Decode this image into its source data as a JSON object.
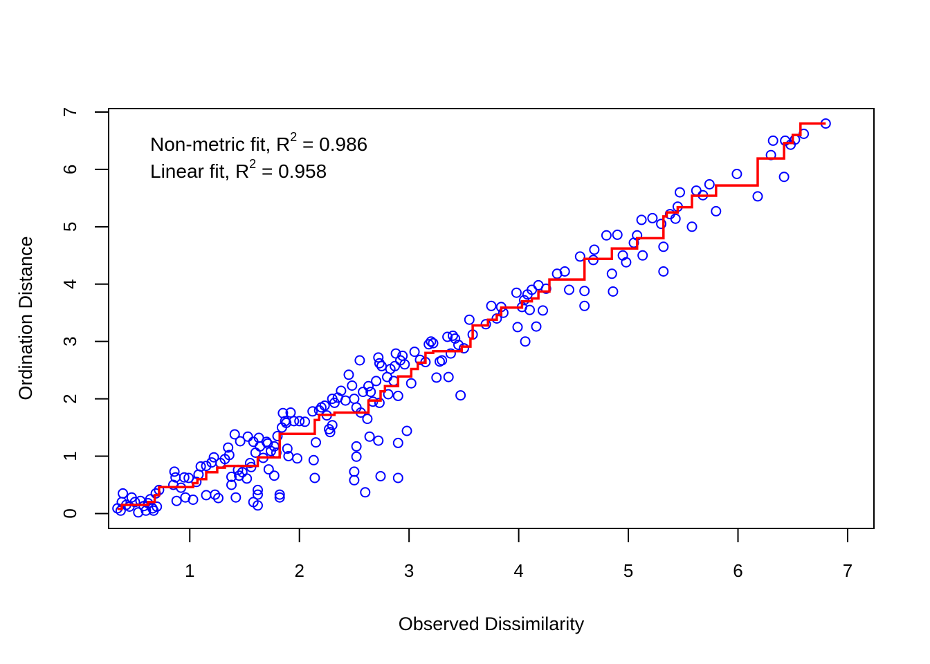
{
  "chart_data": {
    "type": "scatter",
    "title": "",
    "xlabel": "Observed Dissimilarity",
    "ylabel": "Ordination Distance",
    "xlim": [
      0.26,
      7.24
    ],
    "ylim": [
      -0.26,
      7.06
    ],
    "x_ticks": [
      "1",
      "2",
      "3",
      "4",
      "5",
      "6",
      "7"
    ],
    "y_ticks": [
      "0",
      "1",
      "2",
      "3",
      "4",
      "5",
      "6",
      "7"
    ],
    "grid": false,
    "annotations": [
      {
        "prefix": "Non-metric fit, R",
        "sup": "2",
        "suffix": " = 0.986"
      },
      {
        "prefix": "Linear fit, R",
        "sup": "2",
        "suffix": " = 0.958"
      }
    ],
    "colors": {
      "points": "#0000ff",
      "fit": "#ff0000",
      "axis": "#000000"
    },
    "series": [
      {
        "name": "points",
        "marker": "open-circle",
        "points": [
          [
            0.34,
            0.09
          ],
          [
            0.37,
            0.05
          ],
          [
            0.38,
            0.2
          ],
          [
            0.39,
            0.35
          ],
          [
            0.42,
            0.15
          ],
          [
            0.45,
            0.12
          ],
          [
            0.47,
            0.28
          ],
          [
            0.5,
            0.2
          ],
          [
            0.53,
            0.02
          ],
          [
            0.55,
            0.22
          ],
          [
            0.58,
            0.13
          ],
          [
            0.6,
            0.05
          ],
          [
            0.62,
            0.18
          ],
          [
            0.64,
            0.25
          ],
          [
            0.66,
            0.09
          ],
          [
            0.67,
            0.05
          ],
          [
            0.69,
            0.35
          ],
          [
            0.7,
            0.12
          ],
          [
            0.72,
            0.41
          ],
          [
            0.85,
            0.5
          ],
          [
            0.86,
            0.73
          ],
          [
            0.87,
            0.63
          ],
          [
            0.88,
            0.22
          ],
          [
            0.92,
            0.45
          ],
          [
            0.95,
            0.63
          ],
          [
            0.96,
            0.28
          ],
          [
            0.99,
            0.62
          ],
          [
            1.03,
            0.24
          ],
          [
            1.06,
            0.55
          ],
          [
            1.08,
            0.68
          ],
          [
            1.1,
            0.82
          ],
          [
            1.15,
            0.83
          ],
          [
            1.15,
            0.32
          ],
          [
            1.2,
            0.89
          ],
          [
            1.22,
            0.98
          ],
          [
            1.23,
            0.33
          ],
          [
            1.26,
            0.27
          ],
          [
            1.28,
            0.88
          ],
          [
            1.32,
            0.95
          ],
          [
            1.35,
            1.15
          ],
          [
            1.36,
            1.02
          ],
          [
            1.38,
            0.64
          ],
          [
            1.38,
            0.5
          ],
          [
            1.41,
            1.38
          ],
          [
            1.42,
            0.28
          ],
          [
            1.44,
            0.76
          ],
          [
            1.45,
            0.66
          ],
          [
            1.46,
            1.26
          ],
          [
            1.48,
            0.72
          ],
          [
            1.52,
            0.61
          ],
          [
            1.53,
            1.34
          ],
          [
            1.55,
            0.88
          ],
          [
            1.56,
            0.81
          ],
          [
            1.58,
            1.25
          ],
          [
            1.58,
            0.2
          ],
          [
            1.6,
            1.06
          ],
          [
            1.62,
            0.14
          ],
          [
            1.62,
            0.41
          ],
          [
            1.62,
            0.33
          ],
          [
            1.63,
            1.32
          ],
          [
            1.64,
            1.17
          ],
          [
            1.67,
            0.97
          ],
          [
            1.7,
            1.25
          ],
          [
            1.71,
            1.22
          ],
          [
            1.72,
            0.77
          ],
          [
            1.74,
            1.09
          ],
          [
            1.77,
            0.66
          ],
          [
            1.77,
            1.17
          ],
          [
            1.79,
            1.06
          ],
          [
            1.8,
            1.35
          ],
          [
            1.82,
            0.33
          ],
          [
            1.82,
            0.28
          ],
          [
            1.84,
            1.5
          ],
          [
            1.85,
            1.75
          ],
          [
            1.87,
            1.61
          ],
          [
            1.88,
            1.58
          ],
          [
            1.89,
            1.13
          ],
          [
            1.9,
            1.0
          ],
          [
            1.92,
            1.76
          ],
          [
            1.95,
            1.61
          ],
          [
            1.98,
            0.96
          ],
          [
            2.0,
            1.61
          ],
          [
            2.05,
            1.6
          ],
          [
            2.12,
            1.78
          ],
          [
            2.13,
            0.93
          ],
          [
            2.14,
            0.62
          ],
          [
            2.15,
            1.24
          ],
          [
            2.18,
            1.8
          ],
          [
            2.2,
            1.85
          ],
          [
            2.23,
            1.88
          ],
          [
            2.25,
            1.71
          ],
          [
            2.27,
            1.47
          ],
          [
            2.28,
            1.42
          ],
          [
            2.3,
            2.0
          ],
          [
            2.3,
            1.54
          ],
          [
            2.32,
            1.93
          ],
          [
            2.35,
            2.02
          ],
          [
            2.38,
            2.14
          ],
          [
            2.42,
            1.97
          ],
          [
            2.45,
            2.42
          ],
          [
            2.48,
            2.23
          ],
          [
            2.5,
            2.0
          ],
          [
            2.5,
            0.73
          ],
          [
            2.5,
            0.58
          ],
          [
            2.52,
            1.85
          ],
          [
            2.52,
            1.17
          ],
          [
            2.52,
            0.99
          ],
          [
            2.55,
            2.67
          ],
          [
            2.56,
            1.76
          ],
          [
            2.58,
            2.12
          ],
          [
            2.6,
            0.37
          ],
          [
            2.62,
            1.65
          ],
          [
            2.63,
            2.22
          ],
          [
            2.64,
            1.34
          ],
          [
            2.65,
            2.12
          ],
          [
            2.67,
            1.95
          ],
          [
            2.7,
            2.31
          ],
          [
            2.72,
            2.72
          ],
          [
            2.72,
            1.27
          ],
          [
            2.73,
            1.93
          ],
          [
            2.73,
            2.62
          ],
          [
            2.74,
            0.65
          ],
          [
            2.75,
            2.57
          ],
          [
            2.8,
            2.38
          ],
          [
            2.81,
            2.08
          ],
          [
            2.83,
            2.52
          ],
          [
            2.86,
            2.31
          ],
          [
            2.87,
            2.57
          ],
          [
            2.88,
            2.79
          ],
          [
            2.9,
            1.23
          ],
          [
            2.9,
            2.05
          ],
          [
            2.9,
            0.62
          ],
          [
            2.92,
            2.67
          ],
          [
            2.94,
            2.75
          ],
          [
            2.96,
            2.6
          ],
          [
            2.98,
            1.44
          ],
          [
            3.02,
            2.27
          ],
          [
            3.05,
            2.82
          ],
          [
            3.1,
            2.68
          ],
          [
            3.15,
            2.64
          ],
          [
            3.18,
            2.95
          ],
          [
            3.2,
            3.0
          ],
          [
            3.22,
            2.97
          ],
          [
            3.25,
            2.37
          ],
          [
            3.28,
            2.65
          ],
          [
            3.3,
            2.67
          ],
          [
            3.35,
            3.08
          ],
          [
            3.36,
            2.38
          ],
          [
            3.38,
            2.79
          ],
          [
            3.4,
            3.1
          ],
          [
            3.42,
            3.05
          ],
          [
            3.45,
            2.94
          ],
          [
            3.47,
            2.06
          ],
          [
            3.5,
            2.88
          ],
          [
            3.55,
            3.38
          ],
          [
            3.58,
            3.12
          ],
          [
            3.7,
            3.3
          ],
          [
            3.75,
            3.62
          ],
          [
            3.8,
            3.4
          ],
          [
            3.84,
            3.6
          ],
          [
            3.86,
            3.5
          ],
          [
            3.98,
            3.85
          ],
          [
            3.99,
            3.25
          ],
          [
            4.03,
            3.6
          ],
          [
            4.05,
            3.72
          ],
          [
            4.06,
            3.0
          ],
          [
            4.08,
            3.82
          ],
          [
            4.1,
            3.55
          ],
          [
            4.12,
            3.9
          ],
          [
            4.16,
            3.26
          ],
          [
            4.18,
            3.98
          ],
          [
            4.22,
            3.54
          ],
          [
            4.25,
            3.92
          ],
          [
            4.35,
            4.18
          ],
          [
            4.42,
            4.22
          ],
          [
            4.46,
            3.9
          ],
          [
            4.56,
            4.48
          ],
          [
            4.6,
            3.88
          ],
          [
            4.6,
            3.62
          ],
          [
            4.68,
            4.42
          ],
          [
            4.69,
            4.6
          ],
          [
            4.8,
            4.85
          ],
          [
            4.85,
            4.18
          ],
          [
            4.86,
            3.87
          ],
          [
            4.9,
            4.86
          ],
          [
            4.95,
            4.5
          ],
          [
            4.98,
            4.38
          ],
          [
            5.05,
            4.72
          ],
          [
            5.08,
            4.85
          ],
          [
            5.12,
            5.12
          ],
          [
            5.13,
            4.5
          ],
          [
            5.22,
            5.15
          ],
          [
            5.3,
            5.05
          ],
          [
            5.32,
            4.65
          ],
          [
            5.32,
            4.22
          ],
          [
            5.38,
            5.22
          ],
          [
            5.43,
            5.14
          ],
          [
            5.45,
            5.35
          ],
          [
            5.47,
            5.6
          ],
          [
            5.58,
            5.0
          ],
          [
            5.62,
            5.63
          ],
          [
            5.68,
            5.55
          ],
          [
            5.74,
            5.74
          ],
          [
            5.8,
            5.27
          ],
          [
            5.99,
            5.92
          ],
          [
            6.18,
            5.53
          ],
          [
            6.3,
            6.25
          ],
          [
            6.32,
            6.5
          ],
          [
            6.42,
            5.87
          ],
          [
            6.43,
            6.5
          ],
          [
            6.48,
            6.43
          ],
          [
            6.52,
            6.52
          ],
          [
            6.6,
            6.62
          ],
          [
            6.8,
            6.8
          ]
        ]
      },
      {
        "name": "Non-metric fit",
        "type": "step",
        "points": [
          [
            0.34,
            0.08
          ],
          [
            0.38,
            0.08
          ],
          [
            0.38,
            0.15
          ],
          [
            0.62,
            0.15
          ],
          [
            0.62,
            0.2
          ],
          [
            0.68,
            0.2
          ],
          [
            0.68,
            0.32
          ],
          [
            0.72,
            0.32
          ],
          [
            0.72,
            0.46
          ],
          [
            1.03,
            0.46
          ],
          [
            1.03,
            0.53
          ],
          [
            1.07,
            0.53
          ],
          [
            1.07,
            0.6
          ],
          [
            1.15,
            0.6
          ],
          [
            1.15,
            0.72
          ],
          [
            1.25,
            0.72
          ],
          [
            1.25,
            0.8
          ],
          [
            1.32,
            0.8
          ],
          [
            1.32,
            0.83
          ],
          [
            1.62,
            0.83
          ],
          [
            1.62,
            0.98
          ],
          [
            1.82,
            0.98
          ],
          [
            1.82,
            1.39
          ],
          [
            2.14,
            1.39
          ],
          [
            2.14,
            1.63
          ],
          [
            2.18,
            1.63
          ],
          [
            2.18,
            1.72
          ],
          [
            2.32,
            1.72
          ],
          [
            2.32,
            1.76
          ],
          [
            2.63,
            1.76
          ],
          [
            2.63,
            1.97
          ],
          [
            2.74,
            1.97
          ],
          [
            2.74,
            2.13
          ],
          [
            2.78,
            2.13
          ],
          [
            2.78,
            2.22
          ],
          [
            2.9,
            2.22
          ],
          [
            2.9,
            2.39
          ],
          [
            3.02,
            2.39
          ],
          [
            3.02,
            2.52
          ],
          [
            3.08,
            2.52
          ],
          [
            3.08,
            2.63
          ],
          [
            3.15,
            2.63
          ],
          [
            3.15,
            2.8
          ],
          [
            3.22,
            2.8
          ],
          [
            3.22,
            2.83
          ],
          [
            3.48,
            2.83
          ],
          [
            3.48,
            2.91
          ],
          [
            3.56,
            2.91
          ],
          [
            3.56,
            3.05
          ],
          [
            3.58,
            3.05
          ],
          [
            3.58,
            3.28
          ],
          [
            3.72,
            3.28
          ],
          [
            3.72,
            3.38
          ],
          [
            3.8,
            3.38
          ],
          [
            3.8,
            3.46
          ],
          [
            3.84,
            3.46
          ],
          [
            3.84,
            3.59
          ],
          [
            4.03,
            3.59
          ],
          [
            4.03,
            3.7
          ],
          [
            4.12,
            3.7
          ],
          [
            4.12,
            3.75
          ],
          [
            4.18,
            3.75
          ],
          [
            4.18,
            3.87
          ],
          [
            4.28,
            3.87
          ],
          [
            4.28,
            4.08
          ],
          [
            4.6,
            4.08
          ],
          [
            4.6,
            4.44
          ],
          [
            4.85,
            4.44
          ],
          [
            4.85,
            4.62
          ],
          [
            5.08,
            4.62
          ],
          [
            5.08,
            4.8
          ],
          [
            5.32,
            4.8
          ],
          [
            5.32,
            5.18
          ],
          [
            5.35,
            5.18
          ],
          [
            5.35,
            5.25
          ],
          [
            5.45,
            5.25
          ],
          [
            5.45,
            5.34
          ],
          [
            5.58,
            5.34
          ],
          [
            5.58,
            5.54
          ],
          [
            5.8,
            5.54
          ],
          [
            5.8,
            5.72
          ],
          [
            6.18,
            5.72
          ],
          [
            6.18,
            6.19
          ],
          [
            6.42,
            6.19
          ],
          [
            6.42,
            6.46
          ],
          [
            6.5,
            6.46
          ],
          [
            6.5,
            6.6
          ],
          [
            6.57,
            6.6
          ],
          [
            6.57,
            6.8
          ],
          [
            6.8,
            6.8
          ]
        ]
      }
    ]
  }
}
